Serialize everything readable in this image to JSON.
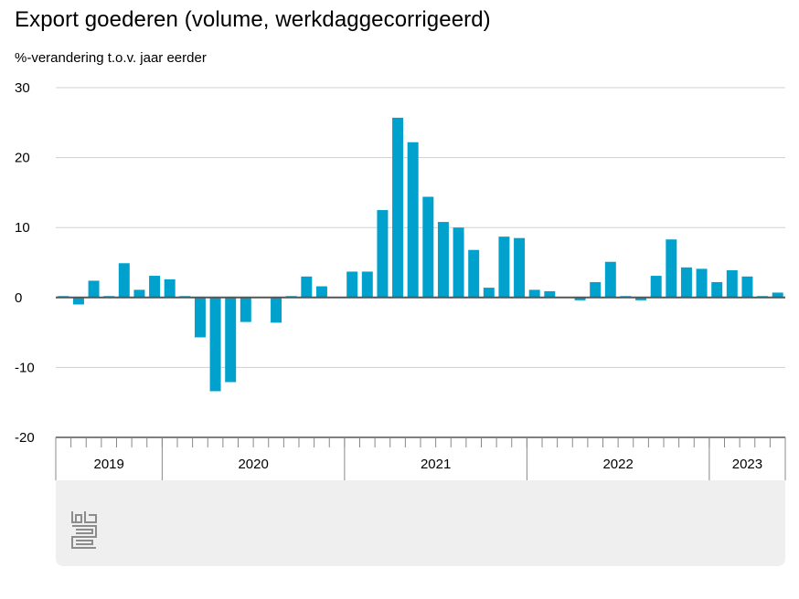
{
  "chart_data": {
    "type": "bar",
    "title": "Export goederen (volume, werkdaggecorrigeerd)",
    "subtitle": "%-verandering t.o.v. jaar eerder",
    "ylim": [
      -20,
      30
    ],
    "yticks": [
      "30",
      "20",
      "10",
      "0",
      "-10",
      "-20"
    ],
    "ytick_values": [
      30,
      20,
      10,
      0,
      -10,
      -20
    ],
    "year_groups": [
      {
        "label": "2019",
        "months": 7
      },
      {
        "label": "2020",
        "months": 12
      },
      {
        "label": "2021",
        "months": 12
      },
      {
        "label": "2022",
        "months": 12
      },
      {
        "label": "2023",
        "months": 5
      }
    ],
    "series": [
      {
        "color": "#00a1cd",
        "values": [
          0.2,
          -1.0,
          2.4,
          0.2,
          4.9,
          1.1,
          3.1,
          2.6,
          0.2,
          -5.7,
          -13.4,
          -12.1,
          -3.5,
          0.1,
          -3.6,
          0.2,
          3.0,
          1.6,
          0.1,
          3.7,
          3.7,
          12.5,
          25.7,
          22.2,
          14.4,
          10.8,
          10.0,
          6.8,
          1.4,
          8.7,
          8.5,
          1.1,
          0.9,
          0.1,
          -0.4,
          2.2,
          5.1,
          0.2,
          -0.4,
          3.1,
          8.3,
          4.3,
          4.1,
          2.2,
          3.9,
          3.0,
          0.2,
          0.7
        ]
      }
    ],
    "grid": true
  },
  "logo": {
    "name": "cbs"
  }
}
